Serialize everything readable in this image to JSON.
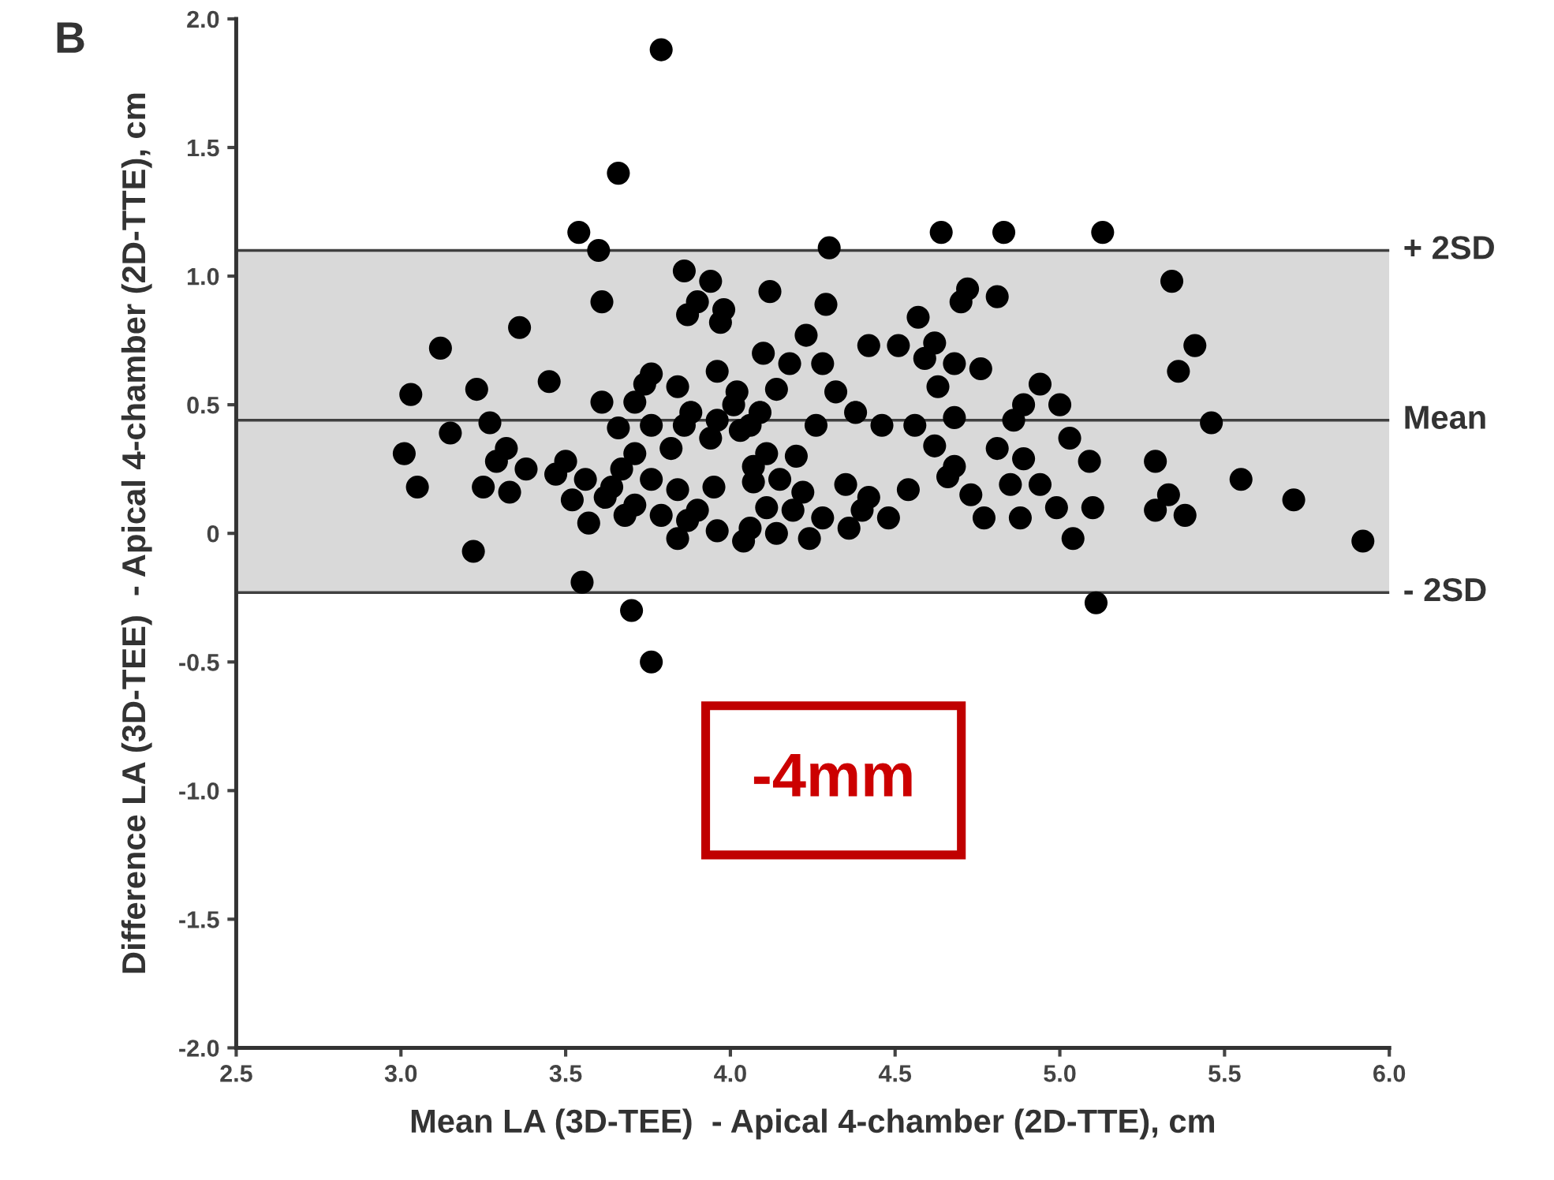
{
  "chart_data": {
    "type": "scatter",
    "title": "B",
    "xlabel": "Mean LA (3D-TEE)  - Apical 4-chamber (2D-TTE), cm",
    "ylabel": "Difference LA (3D-TEE)  - Apical 4-chamber (2D-TTE), cm",
    "xlim": [
      2.5,
      6.0
    ],
    "ylim": [
      -2.0,
      2.0
    ],
    "xticks": [
      {
        "value": 2.5,
        "label": "2.5"
      },
      {
        "value": 3,
        "label": "3.0"
      },
      {
        "value": 3.5,
        "label": "3.5"
      },
      {
        "value": 4,
        "label": "4.0"
      },
      {
        "value": 4.5,
        "label": "4.5"
      },
      {
        "value": 5,
        "label": "5.0"
      },
      {
        "value": 5.5,
        "label": "5.5"
      },
      {
        "value": 6,
        "label": "6.0"
      }
    ],
    "yticks": [
      {
        "value": -2,
        "label": "-2.0"
      },
      {
        "value": -1.5,
        "label": "-1.5"
      },
      {
        "value": -1,
        "label": "-1.0"
      },
      {
        "value": -0.5,
        "label": "-0.5"
      },
      0,
      {
        "value": 0.5,
        "label": "0.5"
      },
      {
        "value": 1,
        "label": "1.0"
      },
      {
        "value": 1.5,
        "label": "1.5"
      },
      {
        "value": 2,
        "label": "2.0"
      }
    ],
    "grid": false,
    "legend": false,
    "marker": "circle",
    "bands": [
      {
        "axis": "y",
        "from": -0.23,
        "to": 1.1,
        "color": "#d9d9d9"
      }
    ],
    "ref_lines": [
      {
        "axis": "y",
        "value": 1.1,
        "label": "+ 2SD",
        "color": "#404040"
      },
      {
        "axis": "y",
        "value": 0.44,
        "label": "Mean",
        "color": "#404040"
      },
      {
        "axis": "y",
        "value": -0.23,
        "label": "- 2SD",
        "color": "#404040"
      }
    ],
    "annotations": [
      "-4mm"
    ],
    "series": [
      {
        "color": "#000000",
        "x": [
          3.54,
          3.6,
          3.61,
          3.36,
          3.12,
          3.03,
          3.23,
          3.45,
          3.61,
          3.66,
          3.15,
          3.27,
          3.01,
          3.05,
          3.25,
          3.32,
          3.29,
          3.38,
          3.33,
          3.47,
          3.5,
          3.56,
          3.52,
          3.62,
          3.64,
          3.67,
          3.68,
          3.57,
          3.22,
          3.55,
          3.7,
          3.86,
          3.94,
          3.9,
          3.98,
          3.97,
          3.87,
          4.12,
          4.3,
          4.64,
          4.29,
          4.23,
          4.1,
          4.18,
          4.28,
          4.42,
          4.51,
          4.62,
          4.59,
          4.68,
          4.76,
          4.63,
          4.57,
          4.7,
          4.72,
          3.96,
          4.14,
          4.32,
          3.84,
          3.74,
          3.76,
          3.71,
          4.01,
          4.02,
          3.76,
          3.86,
          3.88,
          3.94,
          3.96,
          4.06,
          4.09,
          4.03,
          4.26,
          4.38,
          4.46,
          4.56,
          4.68,
          4.62,
          4.68,
          4.66,
          4.73,
          4.77,
          3.71,
          3.82,
          3.76,
          3.71,
          3.79,
          3.84,
          3.95,
          3.84,
          3.87,
          3.9,
          3.96,
          4.04,
          4.06,
          4.11,
          4.2,
          4.07,
          4.15,
          4.07,
          4.11,
          4.22,
          4.19,
          4.14,
          4.24,
          4.28,
          4.35,
          4.36,
          4.4,
          4.42,
          4.48,
          4.54,
          4.83,
          5.13,
          5.34,
          4.81,
          5.41,
          5.36,
          4.94,
          4.89,
          5.0,
          4.86,
          5.46,
          5.03,
          4.81,
          4.89,
          5.09,
          5.29,
          4.85,
          4.94,
          4.88,
          4.99,
          5.1,
          5.04,
          5.29,
          5.33,
          5.38,
          5.55,
          5.71,
          5.92,
          5.11,
          3.79,
          3.66,
          3.76
        ],
        "values": [
          1.17,
          1.1,
          0.9,
          0.8,
          0.72,
          0.54,
          0.56,
          0.59,
          0.51,
          0.41,
          0.39,
          0.43,
          0.31,
          0.18,
          0.18,
          0.33,
          0.28,
          0.25,
          0.16,
          0.23,
          0.28,
          0.21,
          0.13,
          0.14,
          0.18,
          0.25,
          0.07,
          0.04,
          -0.07,
          -0.19,
          -0.3,
          1.02,
          0.98,
          0.9,
          0.87,
          0.82,
          0.85,
          0.94,
          1.11,
          1.17,
          0.89,
          0.77,
          0.7,
          0.66,
          0.66,
          0.73,
          0.73,
          0.74,
          0.68,
          0.66,
          0.64,
          0.57,
          0.84,
          0.9,
          0.95,
          0.63,
          0.56,
          0.55,
          0.57,
          0.58,
          0.62,
          0.51,
          0.5,
          0.55,
          0.42,
          0.42,
          0.47,
          0.37,
          0.44,
          0.42,
          0.47,
          0.4,
          0.42,
          0.47,
          0.42,
          0.42,
          0.45,
          0.34,
          0.26,
          0.22,
          0.15,
          0.06,
          0.31,
          0.33,
          0.21,
          0.11,
          0.07,
          0.17,
          0.18,
          -0.02,
          0.05,
          0.09,
          0.01,
          -0.03,
          0.02,
          0.31,
          0.3,
          0.26,
          0.21,
          0.2,
          0.1,
          0.16,
          0.09,
          0.0,
          -0.02,
          0.06,
          0.19,
          0.02,
          0.09,
          0.14,
          0.06,
          0.17,
          1.17,
          1.17,
          0.98,
          0.92,
          0.73,
          0.63,
          0.58,
          0.5,
          0.5,
          0.44,
          0.43,
          0.37,
          0.33,
          0.29,
          0.28,
          0.28,
          0.19,
          0.19,
          0.06,
          0.1,
          0.1,
          -0.02,
          0.09,
          0.15,
          0.07,
          0.21,
          0.13,
          -0.03,
          -0.27,
          1.88,
          1.4,
          -0.5
        ]
      }
    ]
  }
}
